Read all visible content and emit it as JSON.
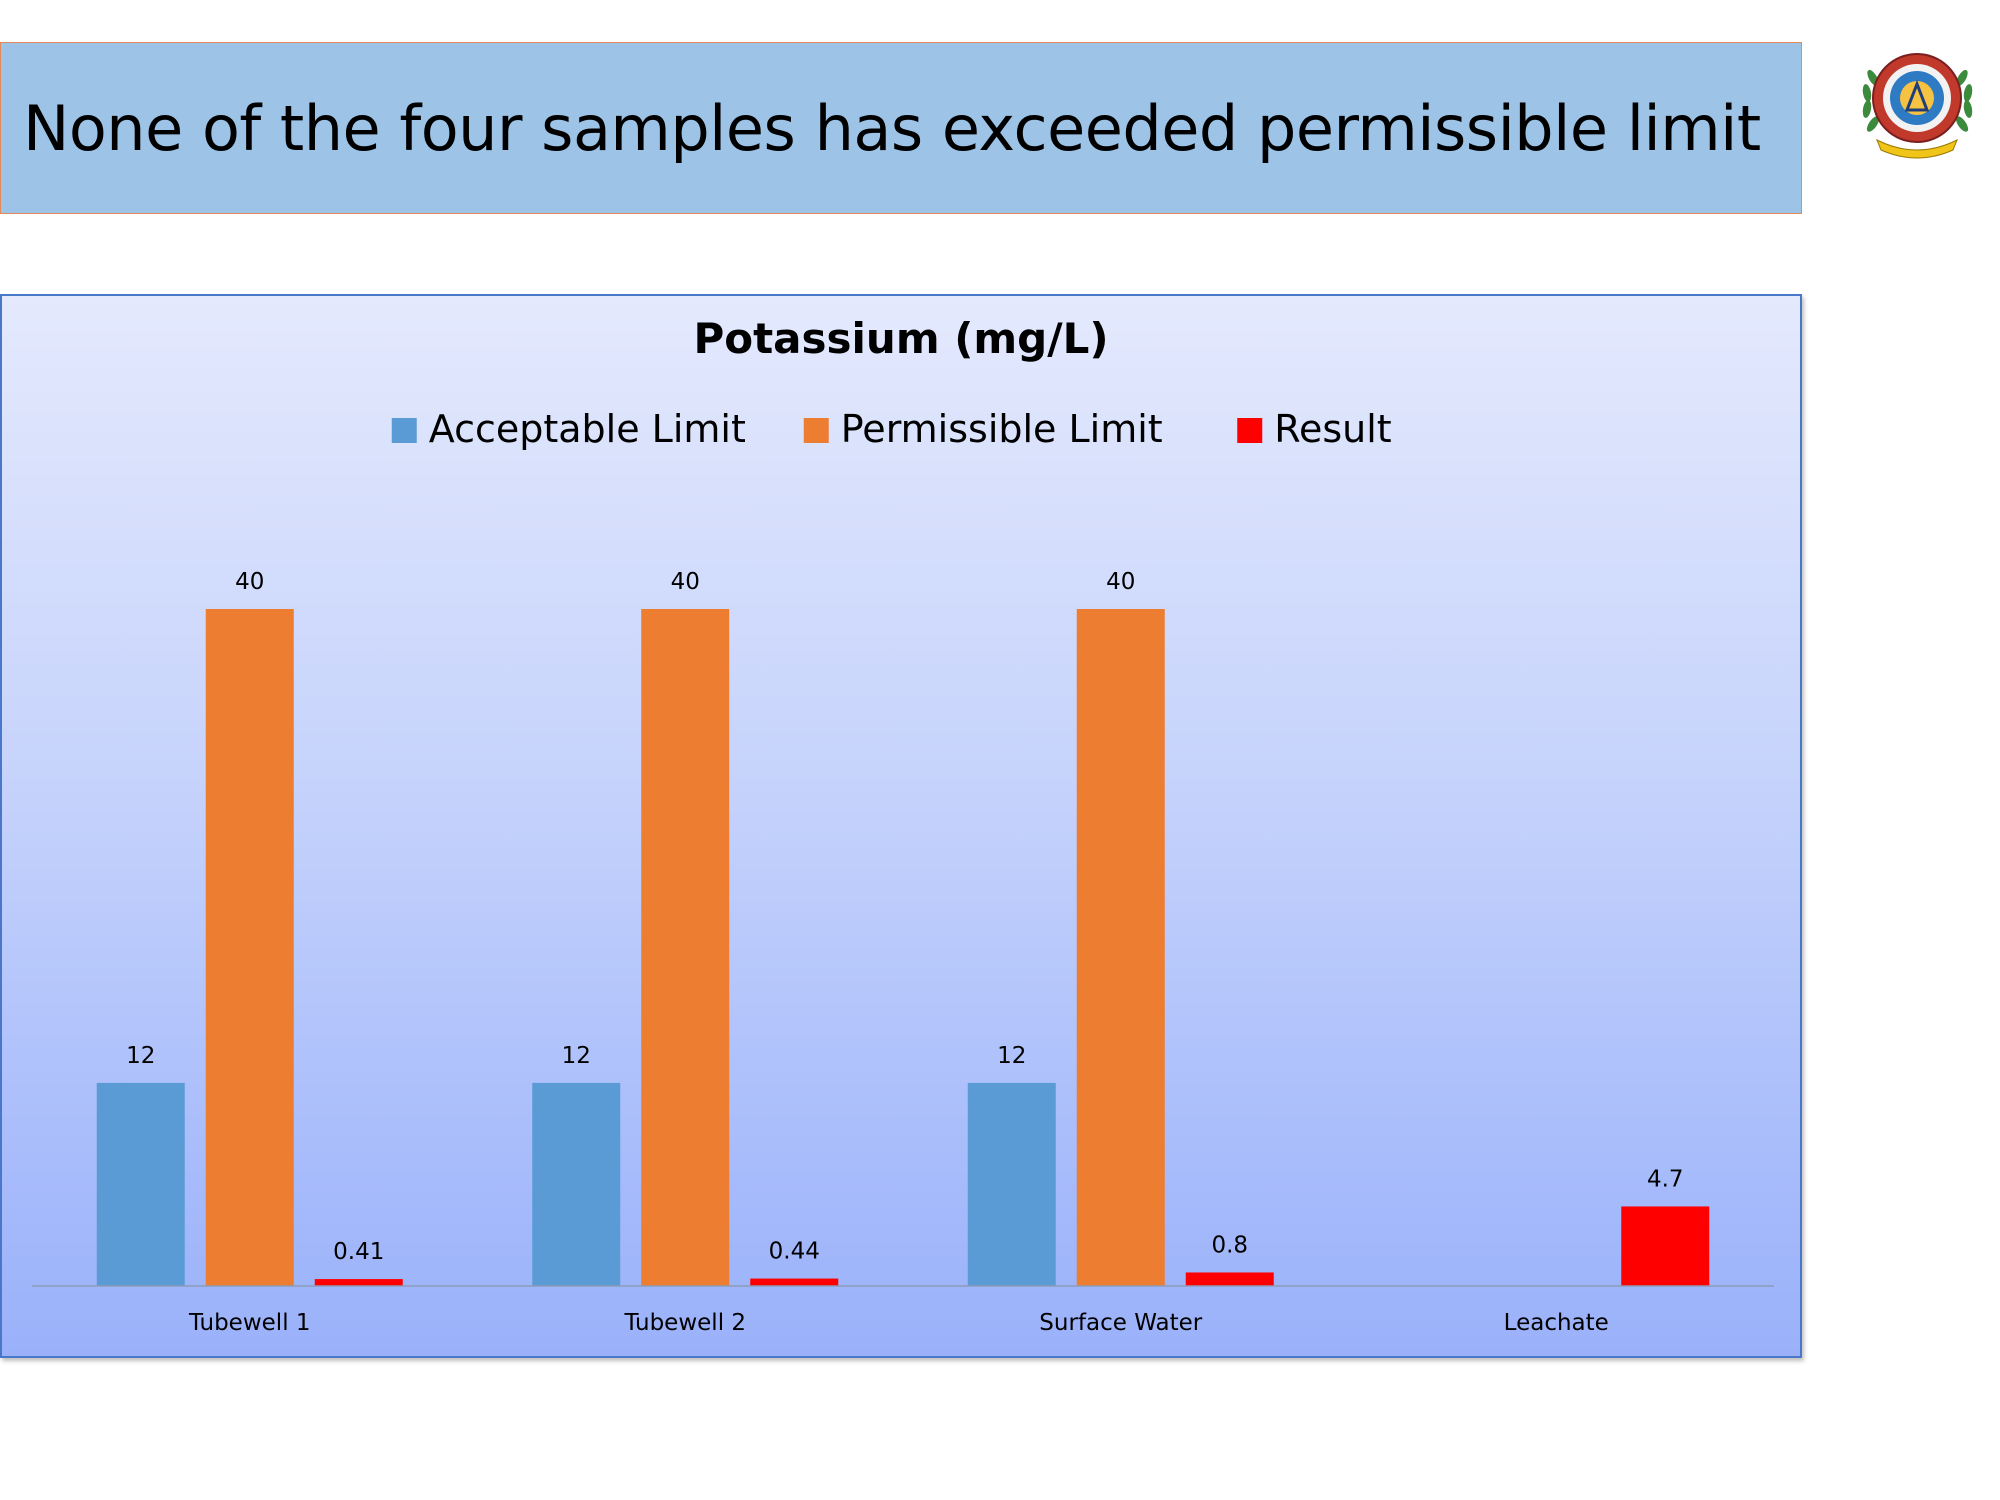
{
  "slide": {
    "title": "None of the four samples has exceeded permissible limit"
  },
  "logo": {
    "icon": "institute-emblem-icon"
  },
  "chart_data": {
    "type": "bar",
    "title": "Potassium (mg/L)",
    "categories": [
      "Tubewell 1",
      "Tubewell 2",
      "Surface Water",
      "Leachate"
    ],
    "series": [
      {
        "name": "Acceptable Limit",
        "color": "#5b9bd5",
        "values": [
          12,
          12,
          12,
          null
        ]
      },
      {
        "name": "Permissible Limit",
        "color": "#ed7d31",
        "values": [
          40,
          40,
          40,
          null
        ]
      },
      {
        "name": "Result",
        "color": "#ff0000",
        "values": [
          0.41,
          0.44,
          0.8,
          4.7
        ]
      }
    ],
    "ylim": [
      0,
      40
    ],
    "legend": "top",
    "grid": false,
    "data_labels": true
  }
}
